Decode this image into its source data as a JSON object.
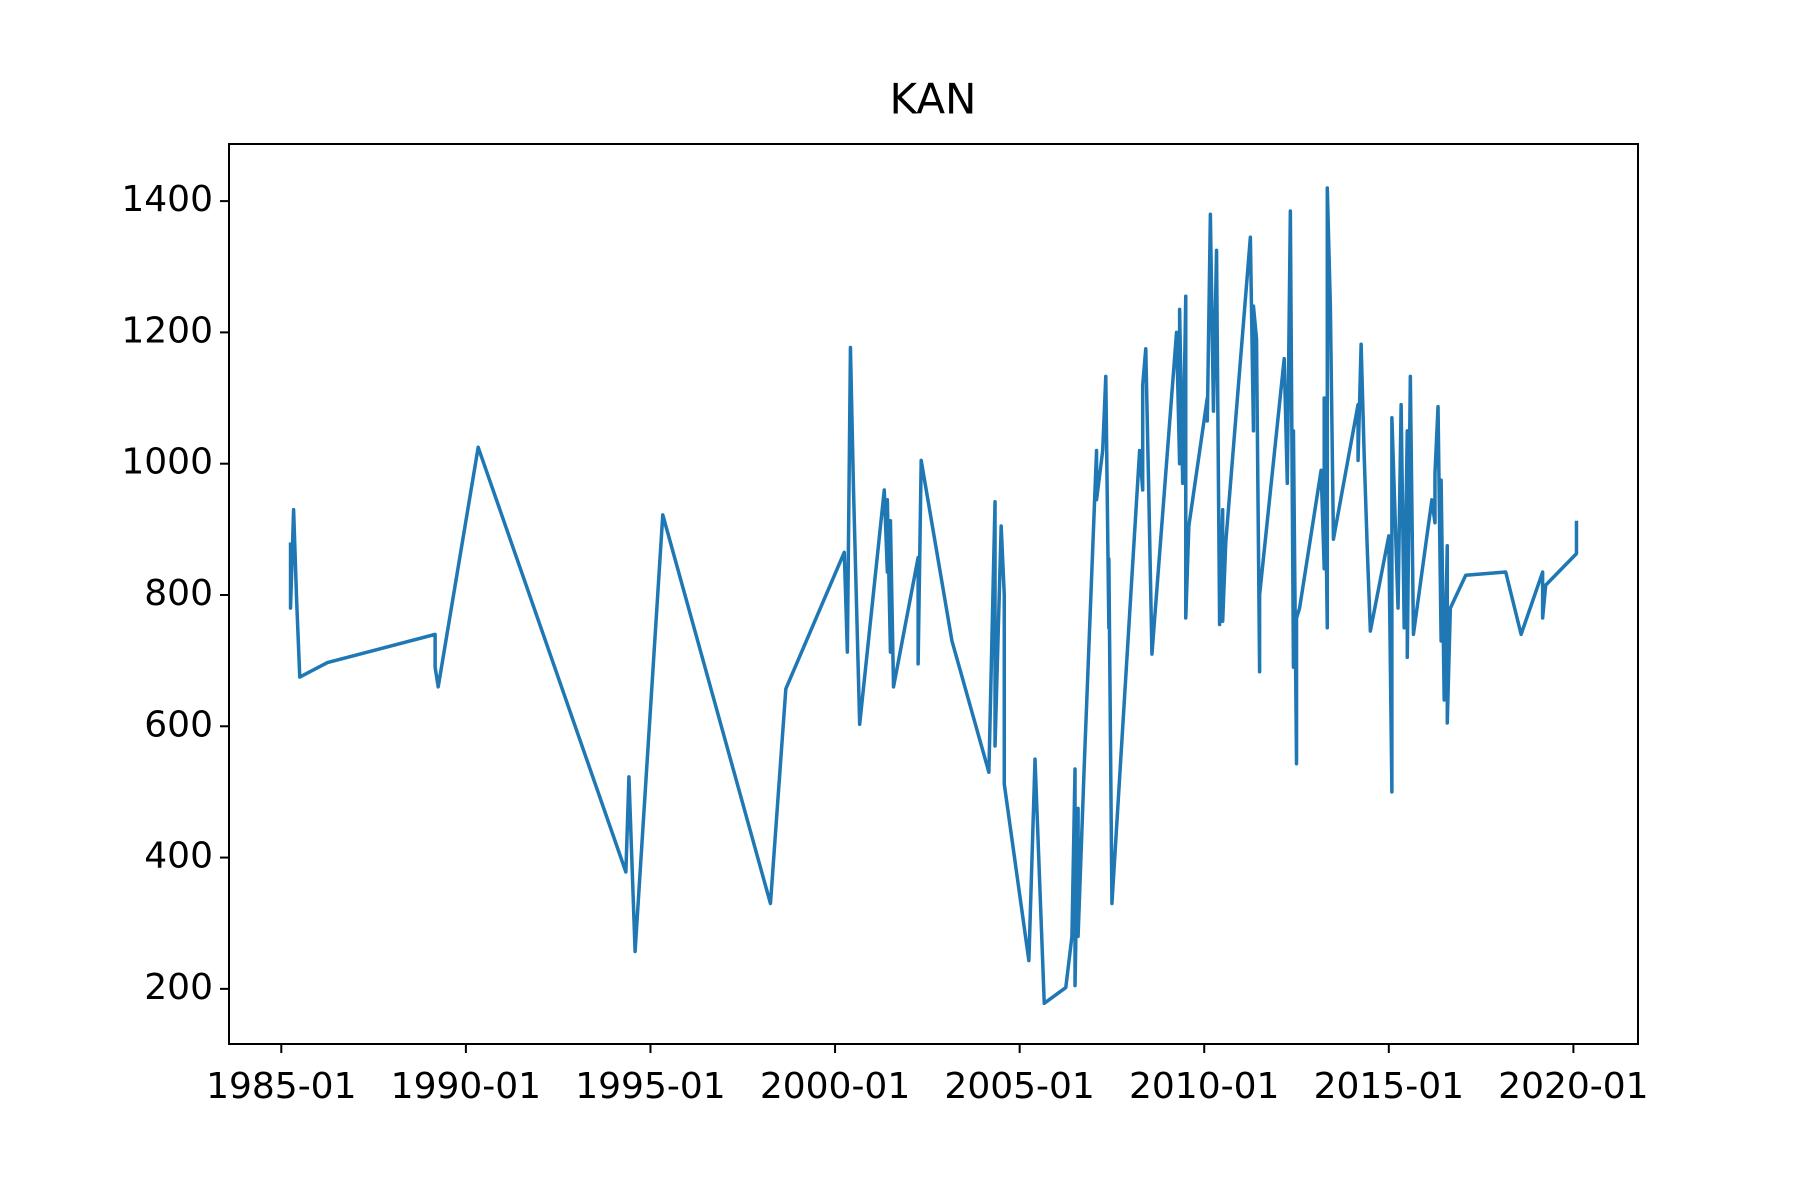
{
  "chart_data": {
    "type": "line",
    "title": "KAN",
    "color": "#1f77b4",
    "x": [
      "1985-04",
      "1985-04",
      "1985-05",
      "1985-06",
      "1985-07",
      "1986-04",
      "1989-03",
      "1989-03",
      "1989-04",
      "1990-05",
      "1994-05",
      "1994-06",
      "1994-08",
      "1995-05",
      "1998-04",
      "1998-09",
      "2000-04",
      "2000-05",
      "2000-06",
      "2000-07",
      "2000-09",
      "2001-05",
      "2001-06",
      "2001-06",
      "2001-07",
      "2001-07",
      "2001-08",
      "2002-04",
      "2002-04",
      "2002-05",
      "2003-03",
      "2004-03",
      "2004-05",
      "2004-05",
      "2004-07",
      "2004-08",
      "2004-08",
      "2005-04",
      "2005-06",
      "2005-09",
      "2006-04",
      "2006-06",
      "2006-07",
      "2006-07",
      "2006-08",
      "2006-08",
      "2006-10",
      "2007-02",
      "2007-02",
      "2007-04",
      "2007-05",
      "2007-06",
      "2007-06",
      "2007-07",
      "2008-04",
      "2008-05",
      "2008-05",
      "2008-06",
      "2008-07",
      "2008-08",
      "2009-04",
      "2009-05",
      "2009-05",
      "2009-06",
      "2009-07",
      "2009-07",
      "2009-08",
      "2010-02",
      "2010-02",
      "2010-03",
      "2010-04",
      "2010-05",
      "2010-06",
      "2010-07",
      "2010-07",
      "2010-08",
      "2011-04",
      "2011-05",
      "2011-05",
      "2011-06",
      "2011-07",
      "2011-07",
      "2012-03",
      "2012-04",
      "2012-05",
      "2012-06",
      "2012-06",
      "2012-07",
      "2012-07",
      "2012-08",
      "2013-03",
      "2013-04",
      "2013-04",
      "2013-05",
      "2013-05",
      "2013-06",
      "2013-07",
      "2014-03",
      "2014-03",
      "2014-04",
      "2014-05",
      "2014-06",
      "2014-07",
      "2015-01",
      "2015-02",
      "2015-02",
      "2015-04",
      "2015-05",
      "2015-06",
      "2015-07",
      "2015-07",
      "2015-08",
      "2015-09",
      "2016-03",
      "2016-04",
      "2016-04",
      "2016-05",
      "2016-06",
      "2016-06",
      "2016-07",
      "2016-08",
      "2016-08",
      "2016-09",
      "2017-02",
      "2018-03",
      "2018-08",
      "2019-03",
      "2019-03",
      "2019-04",
      "2020-02",
      "2020-02"
    ],
    "values": [
      880,
      780,
      930,
      790,
      675,
      697,
      740,
      690,
      660,
      1025,
      378,
      523,
      257,
      922,
      330,
      657,
      865,
      713,
      1177,
      960,
      603,
      960,
      835,
      945,
      713,
      913,
      660,
      857,
      695,
      1005,
      730,
      530,
      942,
      570,
      905,
      800,
      512,
      243,
      550,
      178,
      202,
      280,
      535,
      205,
      475,
      280,
      540,
      1020,
      945,
      1020,
      1133,
      750,
      855,
      330,
      1020,
      960,
      1120,
      1175,
      950,
      710,
      1200,
      1000,
      1235,
      970,
      1255,
      765,
      905,
      1100,
      1065,
      1380,
      1080,
      1325,
      755,
      930,
      760,
      880,
      1345,
      1050,
      1240,
      1190,
      683,
      800,
      1160,
      970,
      1385,
      690,
      1050,
      543,
      765,
      780,
      990,
      840,
      1100,
      750,
      1420,
      1240,
      885,
      1090,
      1005,
      1182,
      1012,
      870,
      745,
      890,
      500,
      1070,
      780,
      1090,
      750,
      1050,
      705,
      1133,
      740,
      945,
      910,
      985,
      1087,
      730,
      975,
      640,
      875,
      605,
      780,
      830,
      835,
      740,
      835,
      765,
      815,
      863,
      913
    ],
    "xlim": [
      "1983-08",
      "2021-10"
    ],
    "xticks": [
      "1985-01",
      "1990-01",
      "1995-01",
      "2000-01",
      "2005-01",
      "2010-01",
      "2015-01",
      "2020-01"
    ],
    "ylim": [
      116,
      1487
    ],
    "yticks": [
      200,
      400,
      600,
      800,
      1000,
      1200,
      1400
    ]
  }
}
